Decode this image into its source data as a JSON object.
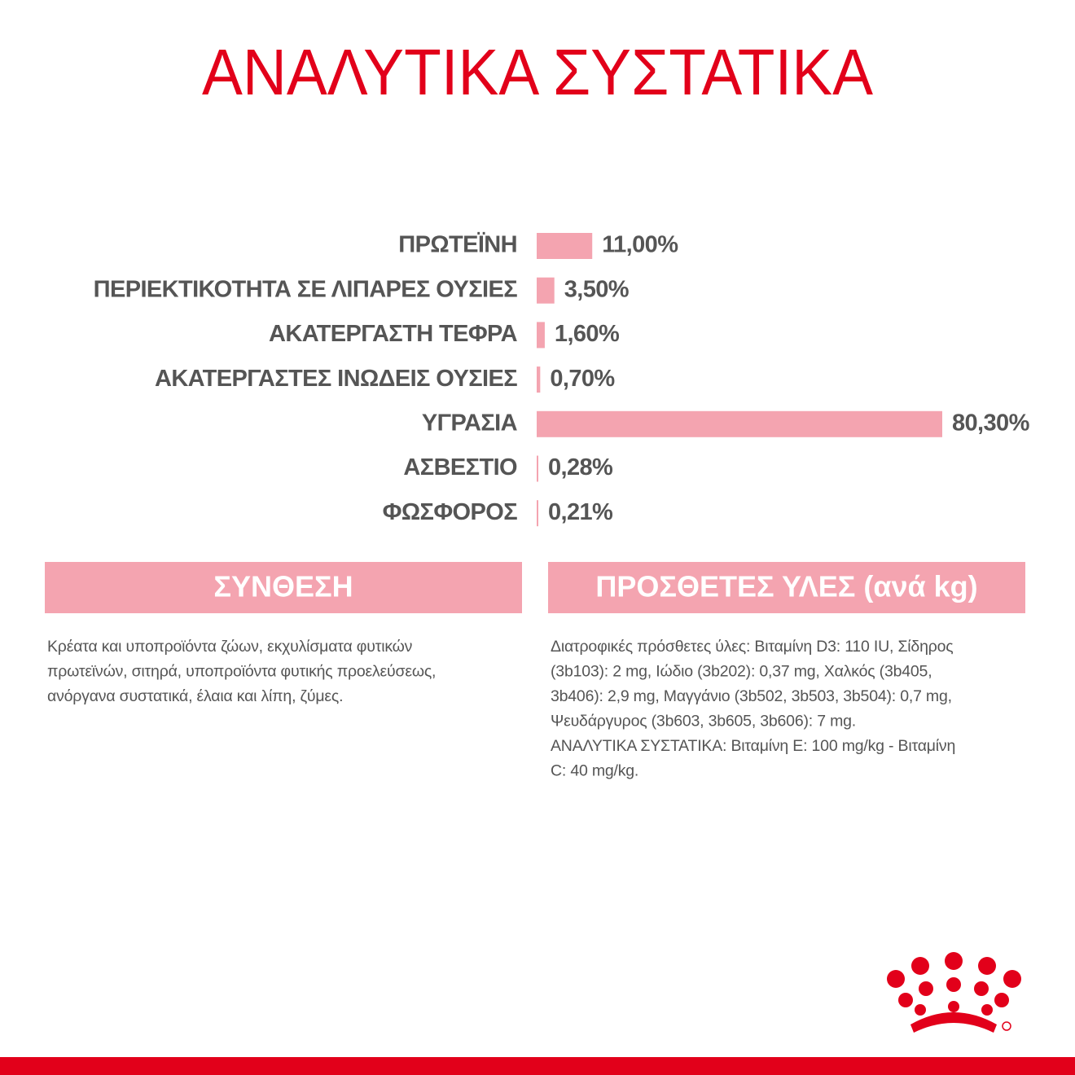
{
  "chart_data": {
    "type": "bar",
    "orientation": "horizontal",
    "title": "ΑΝΑΛΥΤΙΚΑ ΣΥΣΤΑΤΙΚΑ",
    "categories": [
      "ΠΡΩΤΕΪΝΗ",
      "ΠΕΡΙΕΚΤΙΚΟΤΗΤΑ ΣΕ ΛΙΠΑΡΕΣ ΟΥΣΙΕΣ",
      "ΑΚΑΤΕΡΓΑΣΤΗ ΤΕΦΡΑ",
      "ΑΚΑΤΕΡΓΑΣΤΕΣ ΙΝΩΔΕΙΣ ΟΥΣΙΕΣ",
      "ΥΓΡΑΣΙΑ",
      "ΑΣΒΕΣΤΙΟ",
      "ΦΩΣΦΟΡΟΣ"
    ],
    "values": [
      11.0,
      3.5,
      1.6,
      0.7,
      80.3,
      0.28,
      0.21
    ],
    "value_labels": [
      "11,00%",
      "3,50%",
      "1,60%",
      "0,70%",
      "80,30%",
      "0,28%",
      "0,21%"
    ],
    "color": "#f4a4b0"
  },
  "sections": [
    {
      "heading": "ΣΥΝΘΕΣΗ",
      "lines": [
        "Κρέατα και υποπροϊόντα ζώων, εκχυλίσματα φυτικών",
        "πρωτεϊνών, σιτηρά, υποπροϊόντα φυτικής προελεύσεως,",
        "ανόργανα συστατικά, έλαια και λίπη, ζύμες."
      ]
    },
    {
      "heading": "ΠΡΟΣΘΕΤΕΣ ΥΛΕΣ (ανά kg)",
      "lines": [
        "Διατροφικές πρόσθετες ύλες: Βιταμίνη D3: 110 IU, Σίδηρος",
        "(3b103): 2 mg, Ιώδιο (3b202): 0,37 mg, Χαλκός (3b405,",
        "3b406): 2,9 mg, Μαγγάνιο (3b502, 3b503, 3b504): 0,7 mg,",
        "Ψευδάργυρος (3b603, 3b605, 3b606): 7 mg.",
        "ΑΝΑΛΥΤΙΚΑ ΣΥΣΤΑΤΙΚΑ: Βιταμίνη E: 100 mg/kg - Βιταμίνη",
        "C: 40 mg/kg."
      ]
    }
  ]
}
